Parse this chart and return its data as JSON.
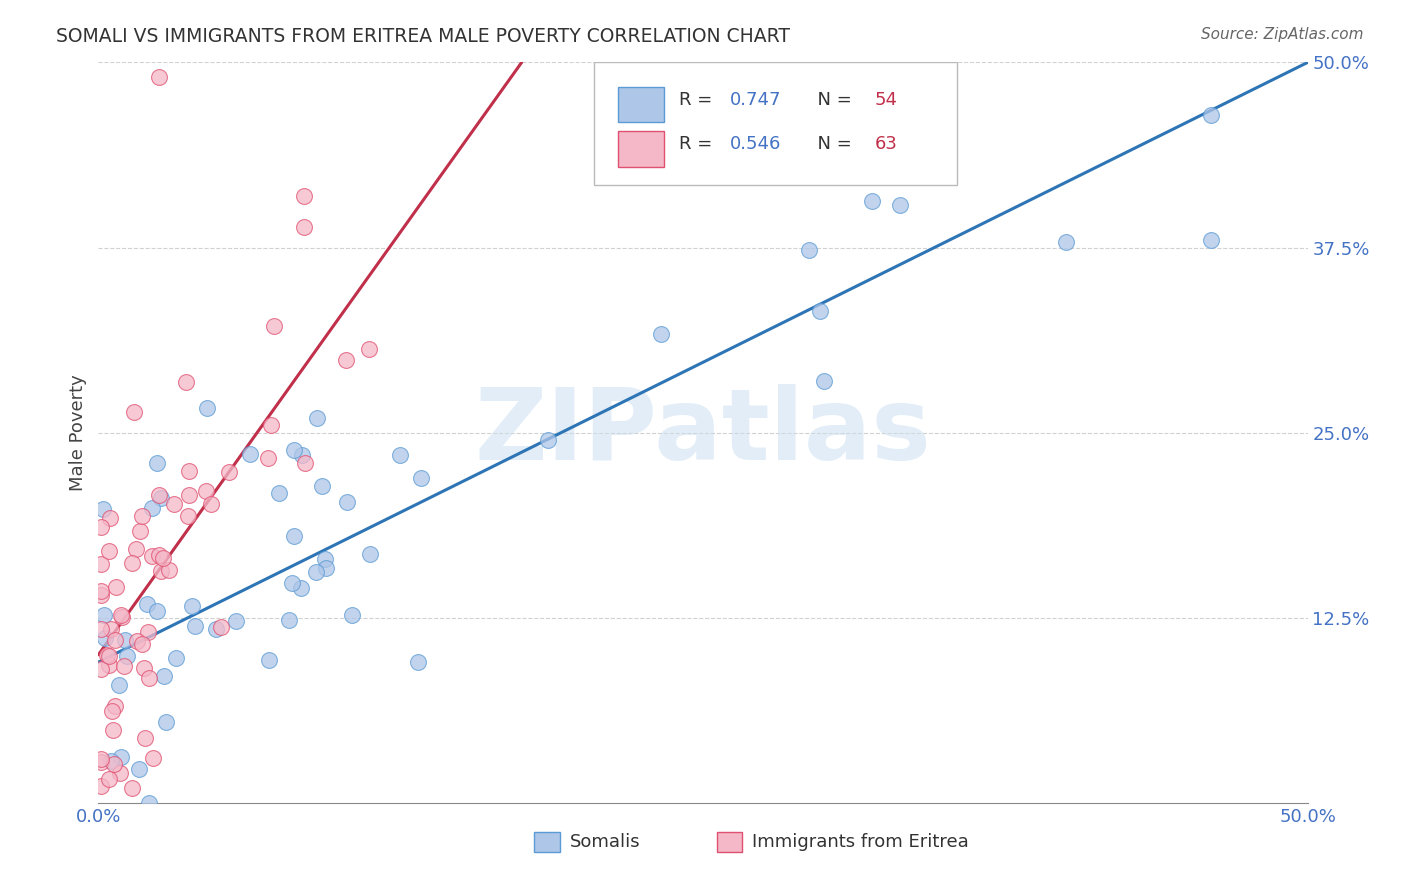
{
  "title": "SOMALI VS IMMIGRANTS FROM ERITREA MALE POVERTY CORRELATION CHART",
  "source_text": "Source: ZipAtlas.com",
  "ylabel": "Male Poverty",
  "xlim": [
    0.0,
    0.5
  ],
  "ylim": [
    0.0,
    0.5
  ],
  "xtick_vals": [
    0.0,
    0.5
  ],
  "xtick_labels": [
    "0.0%",
    "50.0%"
  ],
  "ytick_vals": [
    0.125,
    0.25,
    0.375,
    0.5
  ],
  "ytick_labels": [
    "12.5%",
    "25.0%",
    "37.5%",
    "50.0%"
  ],
  "blue_fill": "#aec6e8",
  "blue_edge": "#5b9bd5",
  "pink_fill": "#f4b8c8",
  "pink_edge": "#e05070",
  "blue_line_color": "#2e75b6",
  "pink_line_color": "#c0304a",
  "legend_r_color": "#4472c4",
  "legend_n_color": "#c0304a",
  "watermark_color": "#d8e8f0",
  "watermark_text": "ZIPatlas",
  "label_somali": "Somalis",
  "label_eritrea": "Immigrants from Eritrea",
  "blue_r": "0.747",
  "blue_n": "54",
  "pink_r": "0.546",
  "pink_n": "63",
  "blue_line_x": [
    0.0,
    0.5
  ],
  "blue_line_y": [
    0.095,
    0.5
  ],
  "pink_line_x": [
    0.0,
    0.175
  ],
  "pink_line_y": [
    0.1,
    0.5
  ]
}
